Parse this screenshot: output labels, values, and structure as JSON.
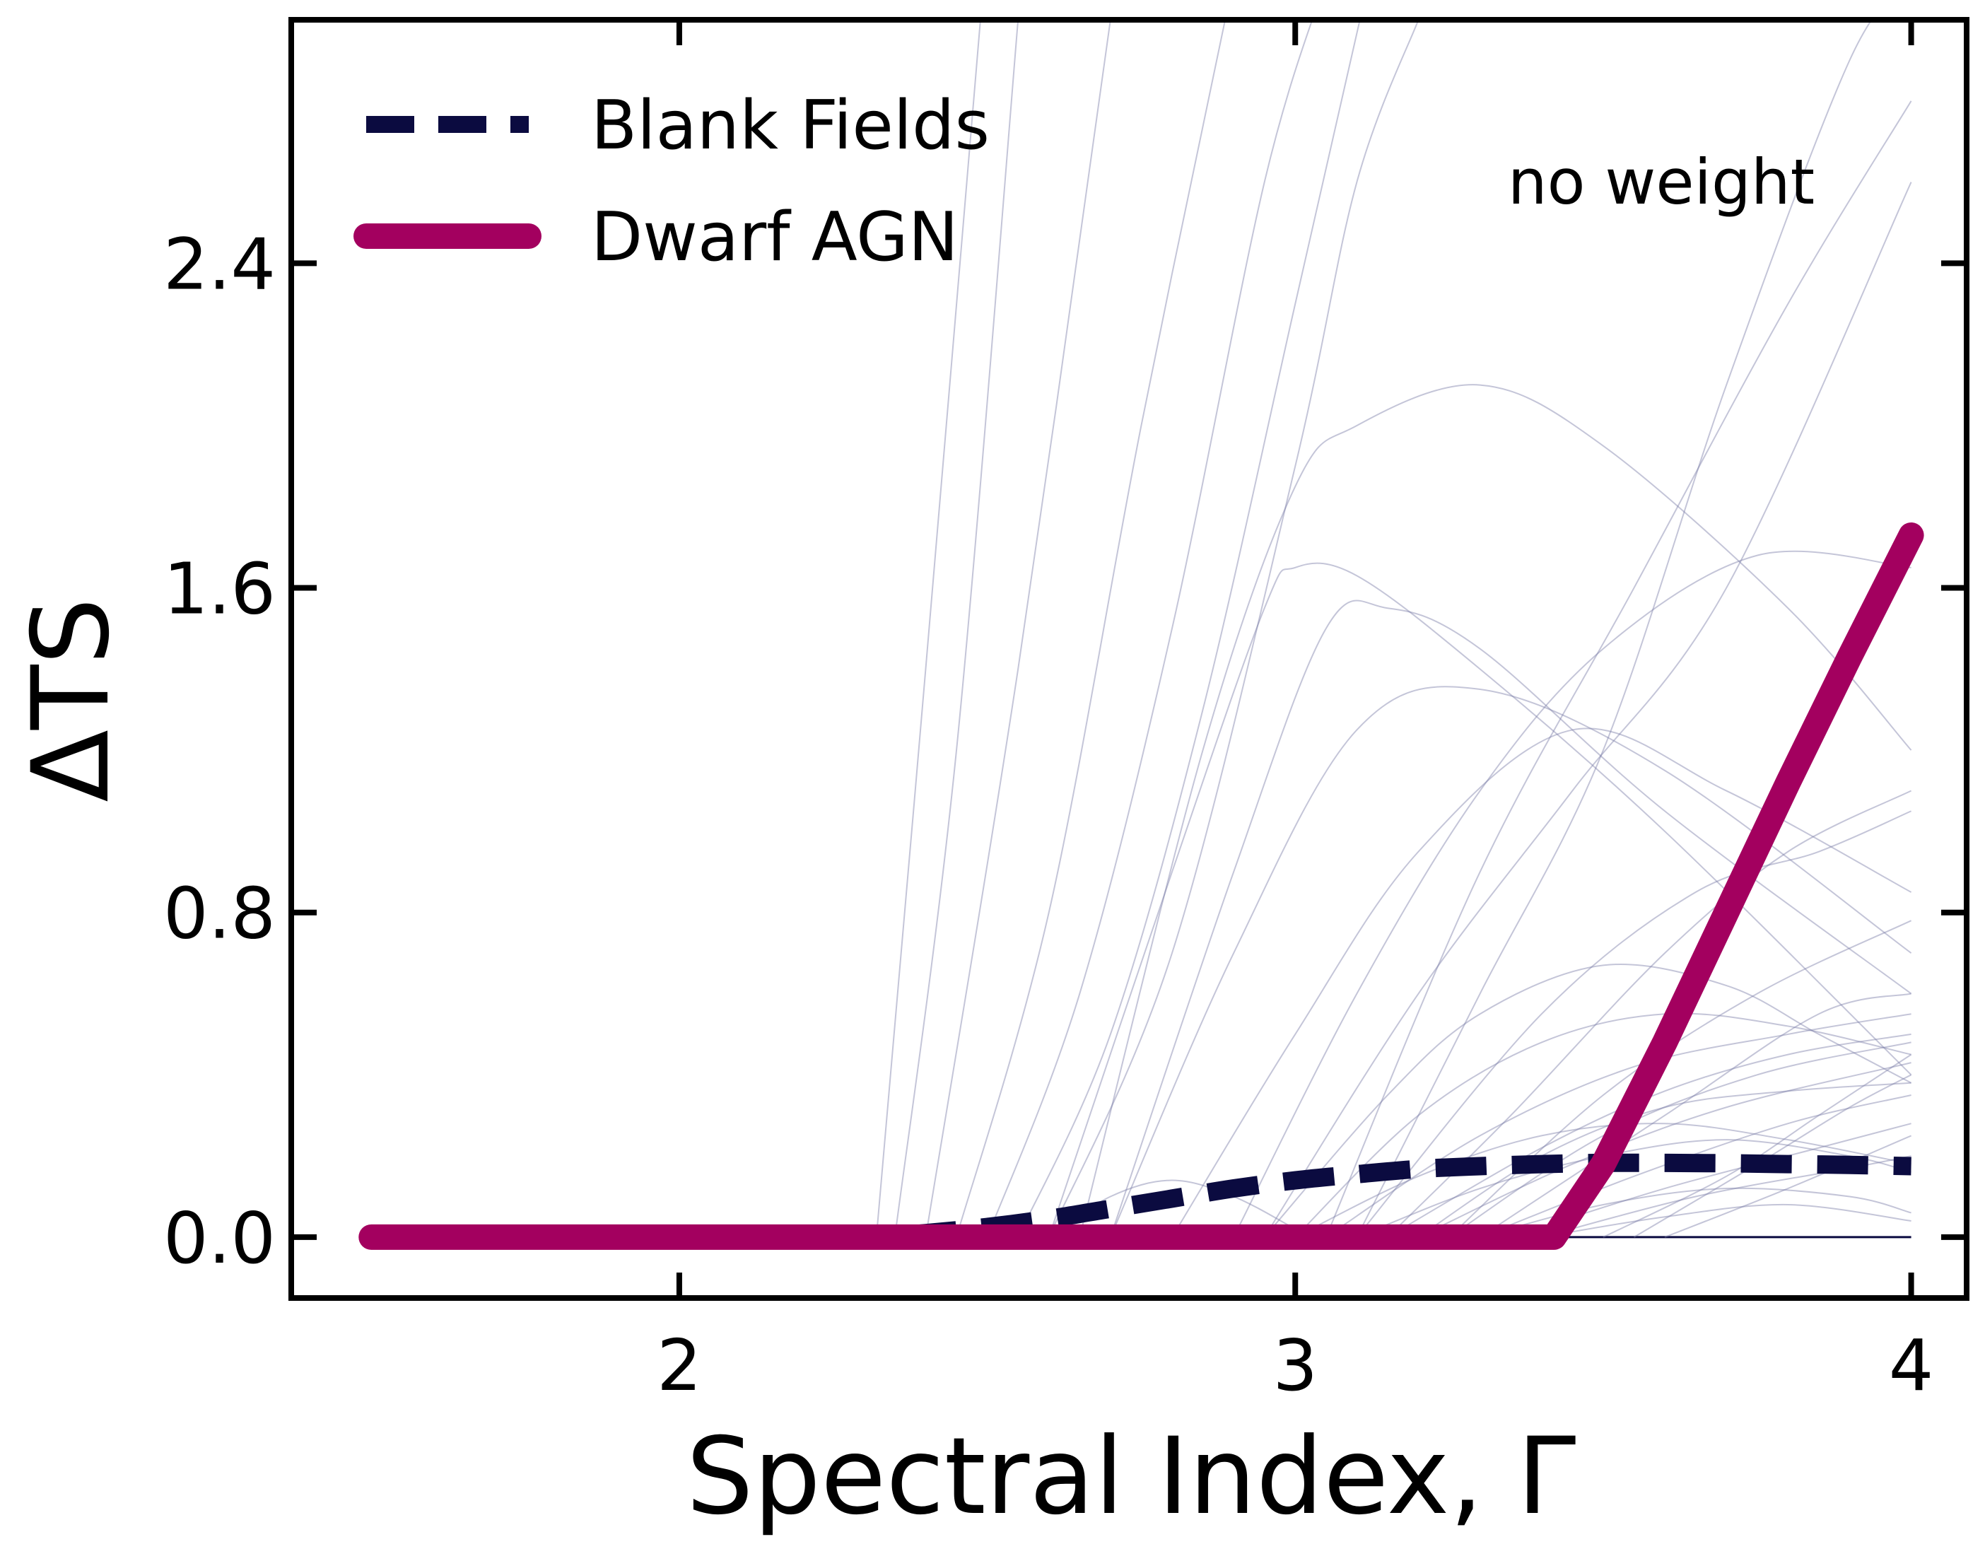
{
  "chart_data": {
    "type": "line",
    "xlabel": "Spectral Index, Γ",
    "ylabel": "ΔTS",
    "xlim": [
      1.37,
      4.09
    ],
    "ylim": [
      -0.15,
      3.0
    ],
    "xticks": [
      2,
      3,
      4
    ],
    "xtick_labels": [
      "2",
      "3",
      "4"
    ],
    "yticks": [
      0.0,
      0.8,
      1.6,
      2.4
    ],
    "ytick_labels": [
      "0.0",
      "0.8",
      "1.6",
      "2.4"
    ],
    "annotation": "no weight",
    "legend": {
      "position": "top-left",
      "entries": [
        {
          "label": "Blank Fields",
          "style": "dashed",
          "color": "#0b0b40"
        },
        {
          "label": "Dwarf AGN",
          "style": "solid",
          "color": "#a3005f"
        }
      ]
    },
    "colors": {
      "blank_fields": "#0b0b40",
      "dwarf_agn": "#a3005f",
      "background_curves": "#7d7ea8",
      "axes": "#000000"
    },
    "series": [
      {
        "name": "Blank Fields",
        "style": "dashed",
        "x": [
          1.5,
          2.0,
          2.3,
          2.4,
          2.5,
          2.6,
          2.7,
          2.8,
          2.9,
          3.0,
          3.1,
          3.2,
          3.3,
          3.4,
          3.5,
          3.6,
          3.7,
          3.8,
          3.9,
          4.0
        ],
        "y": [
          0.0,
          0.0,
          0.0,
          0.01,
          0.025,
          0.045,
          0.07,
          0.095,
          0.12,
          0.14,
          0.155,
          0.168,
          0.175,
          0.18,
          0.183,
          0.183,
          0.182,
          0.18,
          0.178,
          0.175
        ]
      },
      {
        "name": "Dwarf AGN",
        "style": "solid",
        "x": [
          1.5,
          2.0,
          2.5,
          3.0,
          3.42,
          3.5,
          3.6,
          3.7,
          3.8,
          3.9,
          4.0
        ],
        "y": [
          0.0,
          0.0,
          0.0,
          0.0,
          0.0,
          0.18,
          0.48,
          0.8,
          1.12,
          1.43,
          1.73
        ]
      }
    ],
    "background_curves": [
      {
        "x": [
          2.32,
          2.4,
          2.5
        ],
        "y": [
          0.0,
          1.4,
          3.2
        ]
      },
      {
        "x": [
          2.35,
          2.45,
          2.55
        ],
        "y": [
          0.0,
          1.2,
          3.0
        ]
      },
      {
        "x": [
          2.4,
          2.55,
          2.7
        ],
        "y": [
          0.0,
          1.4,
          3.0
        ]
      },
      {
        "x": [
          2.45,
          2.6,
          2.75,
          2.9
        ],
        "y": [
          0.0,
          0.8,
          2.0,
          3.1
        ]
      },
      {
        "x": [
          2.5,
          2.65,
          2.8,
          2.95,
          3.05
        ],
        "y": [
          0.0,
          0.6,
          1.5,
          2.6,
          3.1
        ]
      },
      {
        "x": [
          2.55,
          2.7,
          2.85,
          3.0,
          3.12
        ],
        "y": [
          0.0,
          0.5,
          1.3,
          2.3,
          3.1
        ]
      },
      {
        "x": [
          2.6,
          2.8,
          3.0,
          3.1,
          3.2
        ],
        "y": [
          0.0,
          0.7,
          1.9,
          2.6,
          3.0
        ]
      },
      {
        "x": [
          2.6,
          2.8,
          2.95,
          3.0,
          3.1,
          3.3,
          3.6,
          4.0
        ],
        "y": [
          0.0,
          0.9,
          1.55,
          1.65,
          1.63,
          1.4,
          1.0,
          0.4
        ]
      },
      {
        "x": [
          2.65,
          2.85,
          3.0,
          3.1,
          3.3,
          3.5,
          3.8,
          4.0
        ],
        "y": [
          0.0,
          1.2,
          1.85,
          2.0,
          2.1,
          1.95,
          1.55,
          1.2
        ]
      },
      {
        "x": [
          2.7,
          2.9,
          3.05,
          3.15,
          3.3,
          3.6,
          4.0
        ],
        "y": [
          0.0,
          0.9,
          1.5,
          1.55,
          1.45,
          1.05,
          0.6
        ]
      },
      {
        "x": [
          2.7,
          2.9,
          3.1,
          3.3,
          3.6,
          4.0
        ],
        "y": [
          0.0,
          0.7,
          1.25,
          1.35,
          1.15,
          0.7
        ]
      },
      {
        "x": [
          2.8,
          3.0,
          3.2,
          3.45,
          3.7,
          4.0
        ],
        "y": [
          0.0,
          0.5,
          0.95,
          1.25,
          1.1,
          0.85
        ]
      },
      {
        "x": [
          2.95,
          3.2,
          3.45,
          3.7,
          4.0
        ],
        "y": [
          0.0,
          0.6,
          1.1,
          1.6,
          2.6
        ]
      },
      {
        "x": [
          3.05,
          3.3,
          3.55,
          3.8,
          4.0
        ],
        "y": [
          0.0,
          0.9,
          1.6,
          2.3,
          2.8
        ]
      },
      {
        "x": [
          3.1,
          3.3,
          3.5,
          3.7,
          3.9,
          4.0
        ],
        "y": [
          0.0,
          0.6,
          1.2,
          2.1,
          2.9,
          3.1
        ]
      },
      {
        "x": [
          2.9,
          3.1,
          3.3,
          3.5,
          3.75,
          4.0
        ],
        "y": [
          0.0,
          0.6,
          1.1,
          1.45,
          1.68,
          1.65
        ]
      },
      {
        "x": [
          3.15,
          3.35,
          3.6,
          3.8,
          4.0
        ],
        "y": [
          0.0,
          0.3,
          0.7,
          0.95,
          1.1
        ]
      },
      {
        "x": [
          3.1,
          3.4,
          3.65,
          3.85,
          4.0
        ],
        "y": [
          0.0,
          0.55,
          0.85,
          0.95,
          1.05
        ]
      },
      {
        "x": [
          3.25,
          3.5,
          3.75,
          4.0
        ],
        "y": [
          0.0,
          0.35,
          0.6,
          0.78
        ]
      },
      {
        "x": [
          3.3,
          3.6,
          3.85,
          4.0
        ],
        "y": [
          0.0,
          0.3,
          0.55,
          0.6
        ]
      },
      {
        "x": [
          2.95,
          3.15,
          3.3,
          3.5,
          3.7,
          3.85,
          4.0
        ],
        "y": [
          0.0,
          0.35,
          0.55,
          0.67,
          0.62,
          0.5,
          0.38
        ]
      },
      {
        "x": [
          3.0,
          3.2,
          3.4,
          3.6,
          3.8,
          4.0
        ],
        "y": [
          0.0,
          0.3,
          0.48,
          0.55,
          0.52,
          0.45
        ]
      },
      {
        "x": [
          3.05,
          3.3,
          3.55,
          3.8,
          4.0
        ],
        "y": [
          0.0,
          0.25,
          0.42,
          0.5,
          0.55
        ]
      },
      {
        "x": [
          3.15,
          3.4,
          3.6,
          3.8,
          4.0
        ],
        "y": [
          0.0,
          0.22,
          0.36,
          0.45,
          0.5
        ]
      },
      {
        "x": [
          3.2,
          3.45,
          3.7,
          4.0
        ],
        "y": [
          0.0,
          0.18,
          0.32,
          0.43
        ]
      },
      {
        "x": [
          3.3,
          3.55,
          3.8,
          4.0
        ],
        "y": [
          0.0,
          0.15,
          0.28,
          0.35
        ]
      },
      {
        "x": [
          3.35,
          3.6,
          3.85,
          4.0
        ],
        "y": [
          0.0,
          0.12,
          0.22,
          0.28
        ]
      },
      {
        "x": [
          3.4,
          3.65,
          3.9,
          4.0
        ],
        "y": [
          0.0,
          0.1,
          0.17,
          0.2
        ]
      },
      {
        "x": [
          3.0,
          3.2,
          3.4,
          3.6,
          3.8,
          4.0
        ],
        "y": [
          0.0,
          0.15,
          0.25,
          0.28,
          0.24,
          0.18
        ]
      },
      {
        "x": [
          3.1,
          3.3,
          3.5,
          3.7,
          3.9,
          4.0
        ],
        "y": [
          0.0,
          0.12,
          0.2,
          0.24,
          0.2,
          0.16
        ]
      },
      {
        "x": [
          2.6,
          2.7,
          2.8,
          2.9,
          3.0
        ],
        "y": [
          0.0,
          0.1,
          0.14,
          0.1,
          0.02
        ]
      },
      {
        "x": [
          3.3,
          3.5,
          3.7,
          3.9,
          4.0
        ],
        "y": [
          0.0,
          0.08,
          0.12,
          0.1,
          0.06
        ]
      },
      {
        "x": [
          3.4,
          3.6,
          3.8,
          4.0
        ],
        "y": [
          0.0,
          0.05,
          0.08,
          0.04
        ]
      },
      {
        "x": [
          3.2,
          3.4,
          3.6,
          3.8,
          4.0
        ],
        "y": [
          0.0,
          0.2,
          0.32,
          0.36,
          0.38
        ]
      },
      {
        "x": [
          3.25,
          3.5,
          3.75,
          4.0
        ],
        "y": [
          0.0,
          0.25,
          0.4,
          0.48
        ]
      },
      {
        "x": [
          3.5,
          3.7,
          3.85,
          4.0
        ],
        "y": [
          0.0,
          0.15,
          0.3,
          0.45
        ]
      },
      {
        "x": [
          3.55,
          3.75,
          3.9,
          4.0
        ],
        "y": [
          0.0,
          0.18,
          0.32,
          0.4
        ]
      },
      {
        "x": [
          3.6,
          3.8,
          4.0
        ],
        "y": [
          0.0,
          0.12,
          0.25
        ]
      }
    ]
  }
}
